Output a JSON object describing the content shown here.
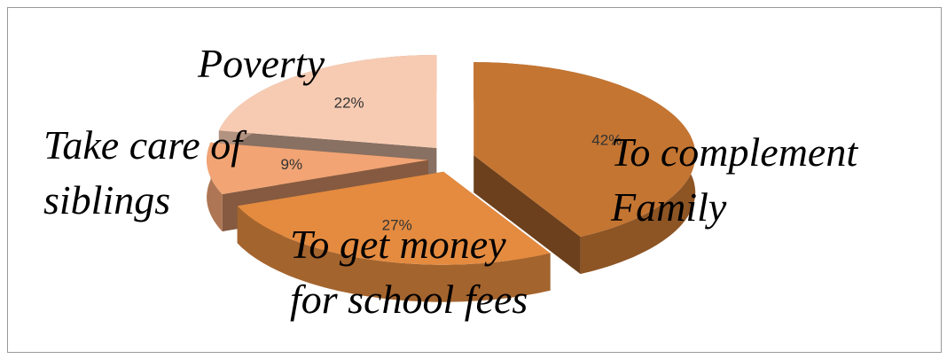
{
  "chart_data": {
    "type": "pie",
    "categories": [
      "To complement Family",
      "To get money for school fees",
      "Take care of siblings",
      "Poverty"
    ],
    "values": [
      42,
      27,
      9,
      22
    ],
    "value_labels": [
      "42%",
      "27%",
      "9%",
      "22%"
    ],
    "colors": [
      "#c47532",
      "#e48b40",
      "#f2a474",
      "#f7cbb2"
    ]
  }
}
